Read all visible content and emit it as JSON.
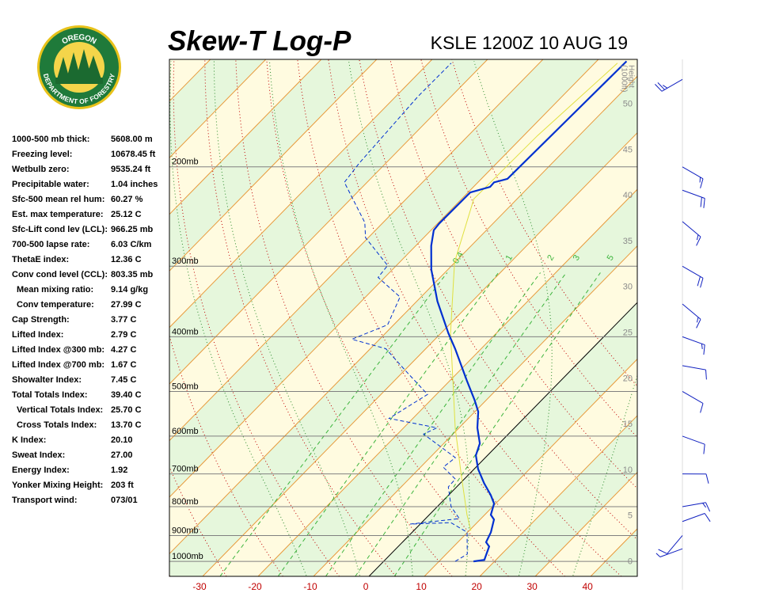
{
  "chart_data": {
    "type": "skewt",
    "title": "Skew-T Log-P",
    "subtitle": "KSLE 1200Z 10 AUG 19",
    "logo": {
      "top": "OREGON",
      "bottom": "DEPARTMENT OF FORESTRY"
    },
    "indices": [
      {
        "label": "1000-500 mb thick:",
        "value": "5608.00 m"
      },
      {
        "label": "Freezing level:",
        "value": "10678.45 ft"
      },
      {
        "label": "Wetbulb zero:",
        "value": "9535.24 ft"
      },
      {
        "label": "Precipitable water:",
        "value": "1.04 inches"
      },
      {
        "label": "Sfc-500 mean rel hum:",
        "value": "60.27 %"
      },
      {
        "label": "Est. max temperature:",
        "value": "25.12 C"
      },
      {
        "label": "Sfc-Lift cond lev (LCL):",
        "value": "966.25 mb"
      },
      {
        "label": "700-500 lapse rate:",
        "value": "6.03 C/km"
      },
      {
        "label": "ThetaE index:",
        "value": "12.36 C"
      },
      {
        "label": "Conv cond level (CCL):",
        "value": "803.35 mb"
      },
      {
        "label": "Mean mixing ratio:",
        "value": "9.14 g/kg",
        "indent": true
      },
      {
        "label": "Conv temperature:",
        "value": "27.99 C",
        "indent": true
      },
      {
        "label": "Cap Strength:",
        "value": "3.77 C"
      },
      {
        "label": "Lifted Index:",
        "value": "2.79 C"
      },
      {
        "label": "Lifted Index @300 mb:",
        "value": "4.27 C"
      },
      {
        "label": "Lifted Index @700 mb:",
        "value": "1.67 C"
      },
      {
        "label": "Showalter Index:",
        "value": "7.45 C"
      },
      {
        "label": "Total Totals Index:",
        "value": "39.40 C"
      },
      {
        "label": "Vertical Totals Index:",
        "value": "25.70 C",
        "indent": true
      },
      {
        "label": "Cross Totals Index:",
        "value": "13.70 C",
        "indent": true
      },
      {
        "label": "K Index:",
        "value": "20.10"
      },
      {
        "label": "Sweat Index:",
        "value": "27.00"
      },
      {
        "label": "Energy Index:",
        "value": "1.92"
      },
      {
        "label": "Yonker Mixing Height:",
        "value": "203 ft"
      },
      {
        "label": "Transport wind:",
        "value": "073/01"
      }
    ],
    "xlim": [
      -36,
      48.4
    ],
    "xticks": [
      -30,
      -20,
      -10,
      0,
      10,
      20,
      30,
      40
    ],
    "plim": [
      1063,
      129
    ],
    "pticks": [
      {
        "value": 1000,
        "label": "1000mb"
      },
      {
        "value": 900,
        "label": "900mb"
      },
      {
        "value": 800,
        "label": "800mb"
      },
      {
        "value": 700,
        "label": "700mb"
      },
      {
        "value": 600,
        "label": "600mb"
      },
      {
        "value": 500,
        "label": "500mb"
      },
      {
        "value": 400,
        "label": "400mb"
      },
      {
        "value": 300,
        "label": "300mb"
      },
      {
        "value": 200,
        "label": "200mb"
      }
    ],
    "height_label": [
      "Height",
      "(1000ft)"
    ],
    "height_lim": [
      -1.6,
      54.9
    ],
    "height_ticks": [
      0,
      5,
      10,
      15,
      20,
      25,
      30,
      35,
      40,
      45,
      50
    ],
    "isotherms": [
      -130,
      -120,
      -110,
      -100,
      -90,
      -80,
      -70,
      -60,
      -50,
      -40,
      -30,
      -20,
      -10,
      0,
      10,
      20,
      30,
      40,
      50
    ],
    "highlight_isotherm": 0,
    "dry_adiabats": [
      -40,
      -30,
      -20,
      -10,
      0,
      10,
      20,
      30,
      40,
      50,
      60,
      70,
      80
    ],
    "moist_adiabats": [
      -15,
      -5,
      5,
      15,
      25,
      35
    ],
    "mixing_ratio_lines": [
      0.4,
      1,
      2,
      3,
      5
    ],
    "temperature": {
      "color": "#0030d0",
      "pressure": [
        1000,
        994,
        941,
        925,
        888,
        843,
        827,
        790,
        763,
        727,
        686,
        649,
        618,
        580,
        543,
        518,
        478,
        420,
        394,
        346,
        304,
        276,
        259,
        252,
        222,
        217,
        213,
        210,
        130
      ],
      "values": [
        16.2,
        17.9,
        16.4,
        15.1,
        14.2,
        12.5,
        11.1,
        9.7,
        7.6,
        4.3,
        0.7,
        -2.1,
        -3.5,
        -6.7,
        -9.4,
        -12.1,
        -17.0,
        -24.7,
        -28.7,
        -36.3,
        -43.0,
        -47.2,
        -49.5,
        -49.7,
        -49.6,
        -47.0,
        -47.1,
        -45.3,
        -44.6
      ]
    },
    "dewpoint": {
      "color": "#0030d0",
      "pressure": [
        1000,
        971,
        888,
        854,
        859,
        840,
        800,
        738,
        715,
        681,
        655,
        595,
        580,
        558,
        506,
        463,
        420,
        404,
        381,
        340,
        314,
        299,
        267,
        251,
        213,
        197,
        150,
        131
      ],
      "values": [
        12.9,
        13.8,
        9.9,
        5.3,
        -1.8,
        6.1,
        2.5,
        -1.5,
        -1.6,
        -5.9,
        -5.4,
        -15.3,
        -14.0,
        -24.3,
        -21.6,
        -29.1,
        -37.2,
        -45.0,
        -41.1,
        -43.8,
        -51.2,
        -51.6,
        -60.5,
        -63.3,
        -74.1,
        -74.8,
        -76.0,
        -75.9
      ]
    },
    "parcel": {
      "color": "#e0e040",
      "pressure": [
        882,
        827,
        704,
        580,
        394,
        295,
        228,
        176,
        131
      ],
      "values": [
        10.3,
        6.8,
        -1.2,
        -10.7,
        -28.3,
        -40.1,
        -47.8,
        -47.5,
        -45.9
      ]
    },
    "winds": {
      "color": "#1020c0",
      "pressure": [
        140,
        200,
        220,
        250,
        300,
        350,
        400,
        450,
        500,
        600,
        700,
        800,
        850,
        900,
        950
      ],
      "direction": [
        240,
        120,
        110,
        130,
        120,
        130,
        110,
        100,
        120,
        110,
        90,
        80,
        70,
        220,
        250
      ],
      "speed": [
        25,
        15,
        20,
        15,
        20,
        15,
        15,
        10,
        10,
        10,
        10,
        15,
        10,
        10,
        5
      ]
    }
  }
}
